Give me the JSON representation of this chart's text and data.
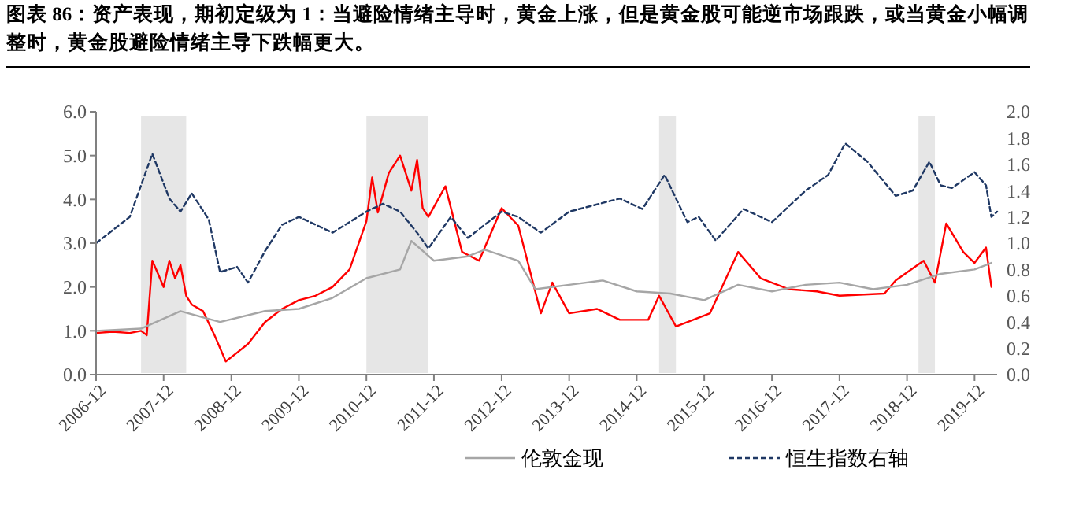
{
  "chart_data": {
    "type": "line",
    "title": "图表 86：资产表现，期初定级为 1：当避险情绪主导时，黄金上涨，但是黄金股可能逆市场跟跌，或当黄金小幅调整时，黄金股避险情绪主导下跌幅更大。",
    "xlim": [
      "2006-12",
      "2020-04"
    ],
    "xticks": [
      "2006-12",
      "2007-12",
      "2008-12",
      "2009-12",
      "2010-12",
      "2011-12",
      "2012-12",
      "2013-12",
      "2014-12",
      "2015-12",
      "2016-12",
      "2017-12",
      "2018-12",
      "2019-12"
    ],
    "ylim": [
      0,
      6
    ],
    "yticks": [
      {
        "value": 0,
        "label": "0.0"
      },
      {
        "value": 1,
        "label": "1.0"
      },
      {
        "value": 2,
        "label": "2.0"
      },
      {
        "value": 3,
        "label": "3.0"
      },
      {
        "value": 4,
        "label": "4.0"
      },
      {
        "value": 5,
        "label": "5.0"
      },
      {
        "value": 6,
        "label": "6.0"
      }
    ],
    "y2lim": [
      0,
      2
    ],
    "y2ticks": [
      {
        "value": 0,
        "label": "0.0"
      },
      {
        "value": 0.2,
        "label": "0.2"
      },
      {
        "value": 0.4,
        "label": "0.4"
      },
      {
        "value": 0.6,
        "label": "0.6"
      },
      {
        "value": 0.8,
        "label": "0.8"
      },
      {
        "value": 1,
        "label": "1.0"
      },
      {
        "value": 1.2,
        "label": "1.2"
      },
      {
        "value": 1.4,
        "label": "1.4"
      },
      {
        "value": 1.6,
        "label": "1.6"
      },
      {
        "value": 1.8,
        "label": "1.8"
      },
      {
        "value": 2,
        "label": "2.0"
      }
    ],
    "grid": false,
    "legend": "bottom",
    "marker": "none",
    "bands": [
      {
        "axis": "x",
        "from": "2007-08",
        "to": "2008-04",
        "color": "#e6e6e6"
      },
      {
        "axis": "x",
        "from": "2010-12",
        "to": "2011-11",
        "color": "#e6e6e6"
      },
      {
        "axis": "x",
        "from": "2015-04",
        "to": "2015-07",
        "color": "#e6e6e6"
      },
      {
        "axis": "x",
        "from": "2019-02",
        "to": "2019-05",
        "color": "#e6e6e6"
      }
    ],
    "series": [
      {
        "color": "#ff0000",
        "line_style": "solid",
        "x": [
          "2006-12",
          "2007-03",
          "2007-06",
          "2007-08",
          "2007-09",
          "2007-10",
          "2007-11",
          "2007-12",
          "2008-01",
          "2008-02",
          "2008-03",
          "2008-04",
          "2008-05",
          "2008-07",
          "2008-09",
          "2008-11",
          "2009-01",
          "2009-03",
          "2009-06",
          "2009-09",
          "2009-12",
          "2010-03",
          "2010-06",
          "2010-09",
          "2010-12",
          "2011-01",
          "2011-02",
          "2011-04",
          "2011-06",
          "2011-08",
          "2011-09",
          "2011-10",
          "2011-11",
          "2012-02",
          "2012-05",
          "2012-08",
          "2012-12",
          "2013-03",
          "2013-05",
          "2013-07",
          "2013-09",
          "2013-12",
          "2014-05",
          "2014-09",
          "2015-02",
          "2015-04",
          "2015-07",
          "2016-01",
          "2016-06",
          "2016-10",
          "2017-03",
          "2017-08",
          "2017-12",
          "2018-08",
          "2018-10",
          "2019-03",
          "2019-05",
          "2019-07",
          "2019-10",
          "2019-12",
          "2020-02",
          "2020-03"
        ],
        "values": [
          0.95,
          0.98,
          0.95,
          1.0,
          0.9,
          2.6,
          2.3,
          2.0,
          2.6,
          2.2,
          2.5,
          1.8,
          1.6,
          1.45,
          0.9,
          0.3,
          0.5,
          0.7,
          1.2,
          1.5,
          1.7,
          1.8,
          2.0,
          2.4,
          3.5,
          4.5,
          3.7,
          4.6,
          5.0,
          4.2,
          4.9,
          3.8,
          3.6,
          4.3,
          2.8,
          2.6,
          3.8,
          3.4,
          2.4,
          1.4,
          2.1,
          1.4,
          1.5,
          1.25,
          1.25,
          1.8,
          1.1,
          1.4,
          2.8,
          2.2,
          1.95,
          1.9,
          1.8,
          1.85,
          2.15,
          2.6,
          2.1,
          3.45,
          2.8,
          2.55,
          2.9,
          2.0
        ]
      },
      {
        "name": "伦敦金现",
        "color": "#a6a6a6",
        "line_style": "solid",
        "x": [
          "2006-12",
          "2007-08",
          "2008-03",
          "2008-10",
          "2009-06",
          "2009-12",
          "2010-06",
          "2010-12",
          "2011-06",
          "2011-08",
          "2011-12",
          "2012-06",
          "2012-09",
          "2013-03",
          "2013-06",
          "2013-12",
          "2014-06",
          "2014-12",
          "2015-06",
          "2015-12",
          "2016-06",
          "2016-12",
          "2017-06",
          "2017-12",
          "2018-06",
          "2018-12",
          "2019-06",
          "2019-12",
          "2020-03"
        ],
        "values": [
          1.0,
          1.05,
          1.45,
          1.2,
          1.45,
          1.5,
          1.75,
          2.2,
          2.4,
          3.05,
          2.6,
          2.7,
          2.85,
          2.6,
          1.95,
          2.05,
          2.15,
          1.9,
          1.85,
          1.7,
          2.05,
          1.9,
          2.05,
          2.1,
          1.95,
          2.05,
          2.3,
          2.4,
          2.55
        ]
      },
      {
        "name": "恒生指数右轴",
        "color": "#1f3864",
        "line_style": "dashed",
        "axis": "y2",
        "x": [
          "2006-12",
          "2007-06",
          "2007-10",
          "2008-01",
          "2008-03",
          "2008-05",
          "2008-08",
          "2008-10",
          "2009-01",
          "2009-03",
          "2009-06",
          "2009-09",
          "2009-12",
          "2010-06",
          "2010-12",
          "2011-03",
          "2011-06",
          "2011-09",
          "2011-11",
          "2012-03",
          "2012-06",
          "2012-12",
          "2013-03",
          "2013-07",
          "2013-12",
          "2014-09",
          "2015-01",
          "2015-05",
          "2015-09",
          "2015-11",
          "2016-02",
          "2016-07",
          "2016-12",
          "2017-06",
          "2017-10",
          "2018-01",
          "2018-05",
          "2018-10",
          "2019-01",
          "2019-04",
          "2019-06",
          "2019-08",
          "2019-12",
          "2020-02",
          "2020-03",
          "2020-04"
        ],
        "values": [
          1.0,
          1.2,
          1.68,
          1.34,
          1.24,
          1.38,
          1.18,
          0.78,
          0.82,
          0.7,
          0.94,
          1.14,
          1.2,
          1.08,
          1.24,
          1.3,
          1.24,
          1.08,
          0.96,
          1.2,
          1.04,
          1.24,
          1.2,
          1.08,
          1.24,
          1.34,
          1.26,
          1.52,
          1.16,
          1.2,
          1.02,
          1.26,
          1.16,
          1.4,
          1.52,
          1.76,
          1.62,
          1.36,
          1.4,
          1.62,
          1.44,
          1.42,
          1.54,
          1.44,
          1.2,
          1.24
        ]
      }
    ]
  }
}
